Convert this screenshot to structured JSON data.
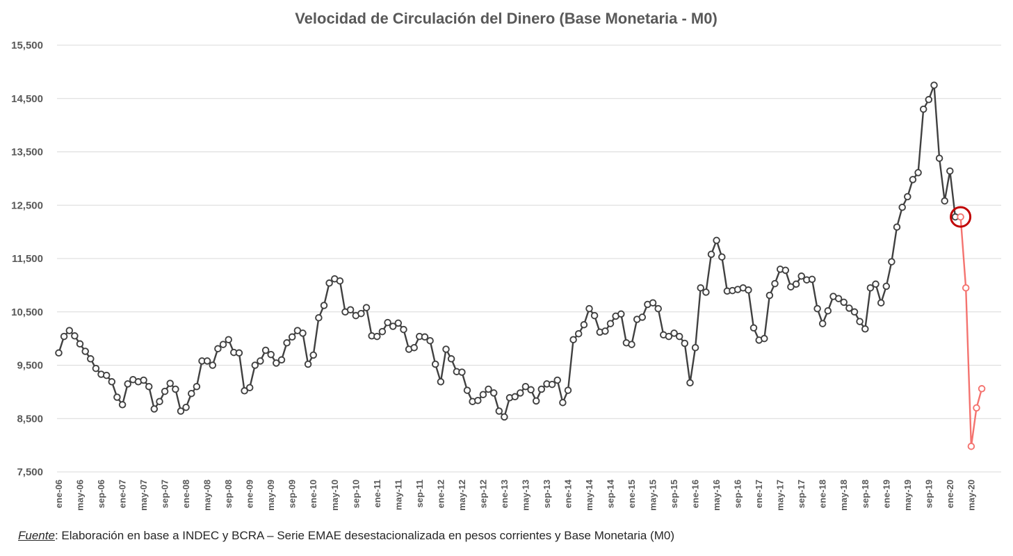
{
  "chart_data": {
    "type": "line",
    "title": "Velocidad de Circulación del Dinero (Base Monetaria - M0)",
    "xlabel": "",
    "ylabel": "",
    "ylim": [
      7500,
      15500
    ],
    "yticks": [
      7500,
      8500,
      9500,
      10500,
      11500,
      12500,
      13500,
      14500,
      15500
    ],
    "ytick_labels": [
      "7,500",
      "8,500",
      "9,500",
      "10,500",
      "11,500",
      "12,500",
      "13,500",
      "14,500",
      "15,500"
    ],
    "x_tick_labels": [
      "ene-06",
      "may-06",
      "sep-06",
      "ene-07",
      "may-07",
      "sep-07",
      "ene-08",
      "may-08",
      "sep-08",
      "ene-09",
      "may-09",
      "sep-09",
      "ene-10",
      "may-10",
      "sep-10",
      "ene-11",
      "may-11",
      "sep-11",
      "ene-12",
      "may-12",
      "sep-12",
      "ene-13",
      "may-13",
      "sep-13",
      "ene-14",
      "may-14",
      "sep-14",
      "ene-15",
      "may-15",
      "sep-15",
      "ene-16",
      "may-16",
      "sep-16",
      "ene-17",
      "may-17",
      "sep-17",
      "ene-18",
      "may-18",
      "sep-18",
      "ene-19",
      "may-19",
      "sep-19",
      "ene-20",
      "may-20"
    ],
    "grid": true,
    "legend": "none",
    "series": [
      {
        "color": "#404040",
        "start": "ene-06",
        "values": [
          9730,
          10040,
          10150,
          10050,
          9900,
          9760,
          9620,
          9440,
          9330,
          9310,
          9190,
          8900,
          8760,
          9150,
          9230,
          9190,
          9220,
          9100,
          8680,
          8820,
          9010,
          9160,
          9050,
          8640,
          8710,
          8970,
          9100,
          9580,
          9580,
          9500,
          9810,
          9890,
          9980,
          9740,
          9730,
          9020,
          9080,
          9500,
          9580,
          9780,
          9700,
          9540,
          9600,
          9920,
          10030,
          10150,
          10100,
          9520,
          9690,
          10390,
          10620,
          11040,
          11120,
          11080,
          10500,
          10540,
          10430,
          10470,
          10580,
          10050,
          10040,
          10130,
          10300,
          10230,
          10290,
          10170,
          9800,
          9830,
          10040,
          10030,
          9960,
          9520,
          9190,
          9800,
          9620,
          9380,
          9370,
          9030,
          8820,
          8840,
          8950,
          9050,
          8980,
          8640,
          8530,
          8890,
          8910,
          8980,
          9100,
          9040,
          8830,
          9050,
          9150,
          9140,
          9220,
          8800,
          9030,
          9980,
          10090,
          10260,
          10560,
          10430,
          10120,
          10140,
          10280,
          10420,
          10460,
          9920,
          9890,
          10360,
          10400,
          10640,
          10670,
          10560,
          10070,
          10040,
          10100,
          10040,
          9910,
          9170,
          9830,
          10950,
          10870,
          11580,
          11840,
          11530,
          10890,
          10900,
          10920,
          10950,
          10910,
          10200,
          9970,
          10000,
          10810,
          11030,
          11300,
          11280,
          10970,
          11020,
          11170,
          11100,
          11110,
          10560,
          10280,
          10520,
          10790,
          10750,
          10680,
          10570,
          10500,
          10320,
          10180,
          10950,
          11020,
          10670,
          10980,
          11440,
          12090,
          12460,
          12660,
          12980,
          13110,
          14300,
          14480,
          14750,
          13380,
          12580,
          13140,
          12280
        ]
      },
      {
        "color": "#f4736f",
        "start": "mar-20",
        "values": [
          12280,
          10950,
          7980,
          8700,
          9060
        ]
      }
    ],
    "highlight": {
      "x": "mar-20",
      "value": 12280,
      "color": "#c00000"
    }
  },
  "footnote": {
    "label": "Fuente",
    "text": ": Elaboración en base a INDEC y BCRA – Serie EMAE desestacionalizada en pesos corrientes y Base Monetaria (M0)"
  }
}
